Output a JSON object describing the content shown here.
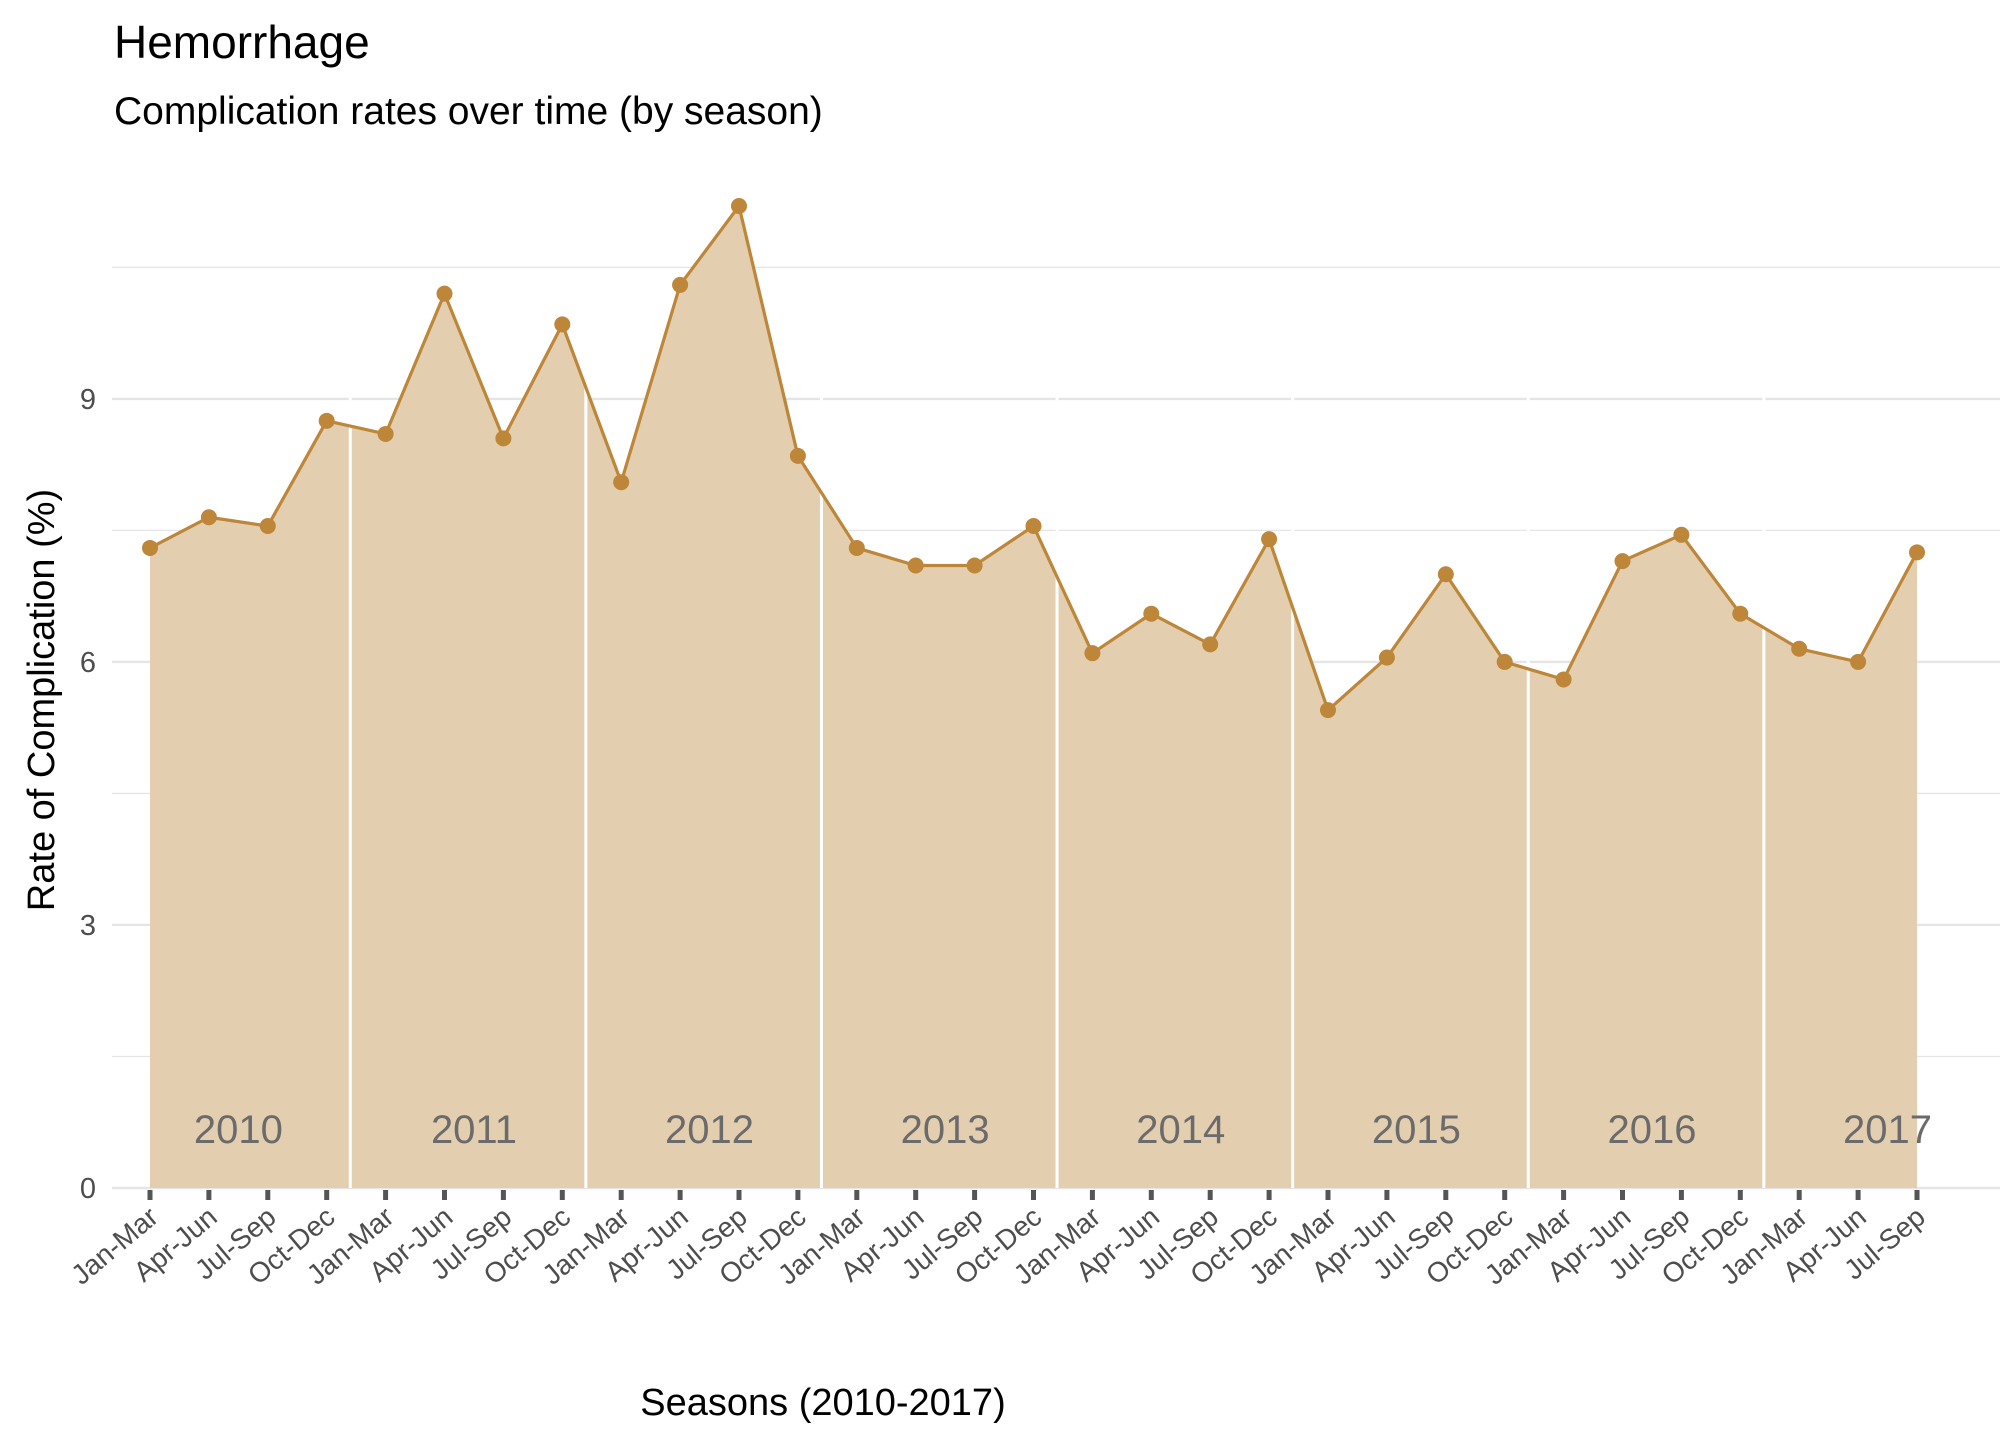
{
  "chart_data": {
    "type": "area",
    "title": "Hemorrhage",
    "subtitle": "Complication rates over time (by season)",
    "xlabel": "Seasons (2010-2017)",
    "ylabel": "Rate of Complication (%)",
    "ylim": [
      0,
      11.2
    ],
    "yticks": [
      "0",
      "3",
      "6",
      "9"
    ],
    "grid": true,
    "categories": [
      "Jan-Mar",
      "Apr-Jun",
      "Jul-Sep",
      "Oct-Dec",
      "Jan-Mar",
      "Apr-Jun",
      "Jul-Sep",
      "Oct-Dec",
      "Jan-Mar",
      "Apr-Jun",
      "Jul-Sep",
      "Oct-Dec",
      "Jan-Mar",
      "Apr-Jun",
      "Jul-Sep",
      "Oct-Dec",
      "Jan-Mar",
      "Apr-Jun",
      "Jul-Sep",
      "Oct-Dec",
      "Jan-Mar",
      "Apr-Jun",
      "Jul-Sep",
      "Oct-Dec",
      "Jan-Mar",
      "Apr-Jun",
      "Jul-Sep",
      "Oct-Dec",
      "Jan-Mar",
      "Apr-Jun",
      "Jul-Sep"
    ],
    "values": [
      7.3,
      7.65,
      7.55,
      8.75,
      8.6,
      10.2,
      8.55,
      9.85,
      8.05,
      10.3,
      11.2,
      8.35,
      7.3,
      7.1,
      7.1,
      7.55,
      6.1,
      6.55,
      6.2,
      7.4,
      5.45,
      6.05,
      7.0,
      6.0,
      5.8,
      7.15,
      7.45,
      6.55,
      6.15,
      6.0,
      7.25
    ],
    "years": [
      "2010",
      "2011",
      "2012",
      "2013",
      "2014",
      "2015",
      "2016",
      "2017"
    ],
    "year_quarter_counts": [
      4,
      4,
      4,
      4,
      4,
      4,
      4,
      3
    ],
    "colors": {
      "line": "#bd8638",
      "fill": "#e3ceb0",
      "grid": "#e5e5e5",
      "separator": "#ffffff",
      "tick_mark": "#555555"
    }
  }
}
